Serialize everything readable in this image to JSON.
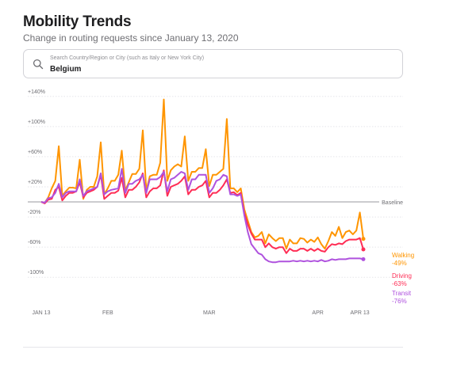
{
  "header": {
    "title": "Mobility Trends",
    "subtitle": "Change in routing requests since January 13, 2020"
  },
  "search": {
    "placeholder": "Search Country/Region or City (such as Italy or New York City)",
    "value": "Belgium",
    "icon": "search-icon"
  },
  "chart_data": {
    "type": "line",
    "title": "",
    "xlabel": "",
    "ylabel": "",
    "start_date": "2020-01-13",
    "x_ticks": [
      {
        "label": "JAN 13",
        "day": 0
      },
      {
        "label": "FEB",
        "day": 19
      },
      {
        "label": "MAR",
        "day": 48
      },
      {
        "label": "APR",
        "day": 79
      },
      {
        "label": "APR 13",
        "day": 91
      }
    ],
    "y_ticks": [
      {
        "label": "+140%",
        "value": 140
      },
      {
        "label": "+100%",
        "value": 100
      },
      {
        "label": "+60%",
        "value": 60
      },
      {
        "label": "+20%",
        "value": 20
      },
      {
        "label": "-20%",
        "value": -20
      },
      {
        "label": "-60%",
        "value": -60
      },
      {
        "label": "-100%",
        "value": -100
      }
    ],
    "ylim": [
      -105,
      145
    ],
    "baseline": {
      "label": "Baseline",
      "value": 0
    },
    "grid": true,
    "series": [
      {
        "name": "Walking",
        "end_label": "-49%",
        "color": "#ff9500",
        "values": [
          0,
          -1,
          6,
          18,
          28,
          74,
          8,
          14,
          19,
          19,
          18,
          56,
          4,
          16,
          20,
          20,
          34,
          79,
          10,
          18,
          28,
          28,
          36,
          68,
          15,
          26,
          37,
          37,
          44,
          95,
          15,
          34,
          36,
          36,
          52,
          136,
          28,
          42,
          47,
          50,
          47,
          87,
          28,
          40,
          40,
          45,
          45,
          70,
          21,
          36,
          36,
          40,
          44,
          110,
          18,
          18,
          13,
          18,
          -10,
          -25,
          -40,
          -47,
          -45,
          -40,
          -55,
          -43,
          -48,
          -52,
          -48,
          -48,
          -62,
          -50,
          -55,
          -55,
          -48,
          -49,
          -54,
          -50,
          -53,
          -47,
          -56,
          -62,
          -52,
          -40,
          -45,
          -33,
          -48,
          -40,
          -38,
          -43,
          -38,
          -14,
          -49
        ]
      },
      {
        "name": "Driving",
        "end_label": "-63%",
        "color": "#ff2d55",
        "values": [
          0,
          -2,
          3,
          4,
          16,
          20,
          2,
          8,
          12,
          12,
          14,
          26,
          6,
          12,
          14,
          16,
          20,
          36,
          4,
          8,
          12,
          12,
          15,
          32,
          6,
          16,
          16,
          20,
          26,
          38,
          6,
          14,
          18,
          18,
          22,
          42,
          8,
          20,
          22,
          24,
          28,
          34,
          10,
          16,
          16,
          20,
          22,
          28,
          6,
          12,
          12,
          16,
          22,
          30,
          12,
          13,
          9,
          12,
          -15,
          -30,
          -42,
          -50,
          -50,
          -50,
          -60,
          -55,
          -60,
          -62,
          -60,
          -60,
          -68,
          -62,
          -65,
          -65,
          -62,
          -62,
          -65,
          -62,
          -65,
          -62,
          -65,
          -66,
          -60,
          -56,
          -57,
          -55,
          -56,
          -52,
          -50,
          -50,
          -50,
          -48,
          -63
        ]
      },
      {
        "name": "Transit",
        "end_label": "-76%",
        "color": "#af52de",
        "values": [
          0,
          -1,
          5,
          6,
          12,
          24,
          6,
          12,
          14,
          14,
          14,
          30,
          8,
          14,
          16,
          18,
          20,
          38,
          10,
          14,
          16,
          17,
          18,
          44,
          12,
          24,
          24,
          28,
          30,
          36,
          12,
          30,
          30,
          30,
          33,
          40,
          14,
          30,
          32,
          36,
          40,
          38,
          16,
          30,
          30,
          36,
          36,
          36,
          12,
          18,
          28,
          30,
          36,
          34,
          10,
          10,
          8,
          10,
          -18,
          -40,
          -56,
          -62,
          -68,
          -70,
          -76,
          -79,
          -80,
          -80,
          -79,
          -79,
          -79,
          -79,
          -78,
          -79,
          -78,
          -79,
          -78,
          -79,
          -78,
          -79,
          -77,
          -79,
          -78,
          -76,
          -77,
          -76,
          -76,
          -76,
          -75,
          -75,
          -75,
          -75,
          -76
        ]
      }
    ]
  }
}
